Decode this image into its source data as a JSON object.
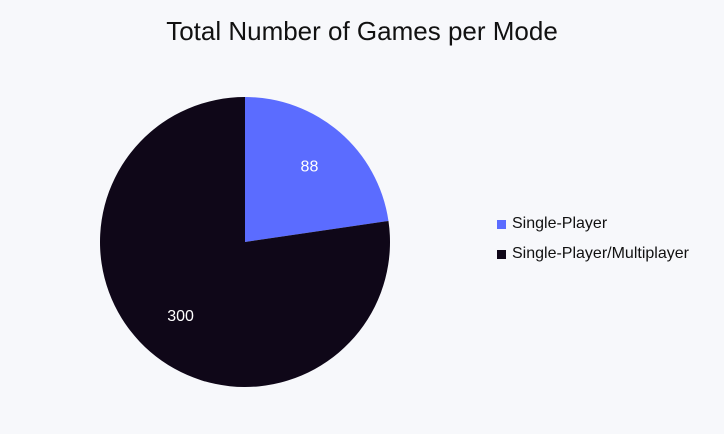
{
  "chart_data": {
    "type": "pie",
    "title": "Total Number of Games per Mode",
    "categories": [
      "Single-Player",
      "Single-Player/Multiplayer"
    ],
    "values": [
      88,
      300
    ],
    "colors": [
      "#5b6cff",
      "#0f0718"
    ],
    "data_labels": [
      "88",
      "300"
    ],
    "legend_position": "right"
  }
}
